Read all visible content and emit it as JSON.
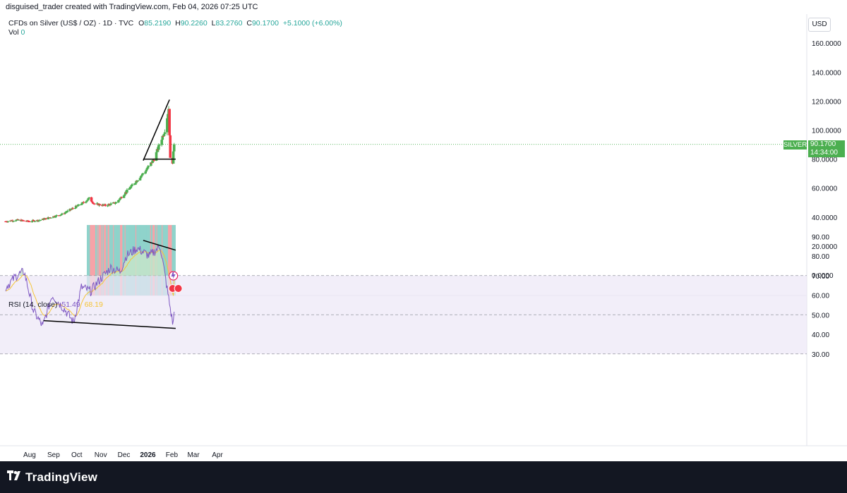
{
  "header": {
    "caption": "disguised_trader created with TradingView.com, Feb 04, 2026 07:25 UTC"
  },
  "legend": {
    "symbol": "CFDs on Silver (US$ / OZ) · 1D · TVC",
    "o_label": "O",
    "o_value": "85.2190",
    "h_label": "H",
    "h_value": "90.2260",
    "l_label": "L",
    "l_value": "83.2760",
    "c_label": "C",
    "c_value": "90.1700",
    "change": "+5.1000 (+6.00%)",
    "vol_label": "Vol",
    "vol_value": "0"
  },
  "currency": "USD",
  "price_tag": {
    "name": "SILVER",
    "price": "90.1700",
    "countdown": "14:34:00"
  },
  "rsi_legend": {
    "label": "RSI (14, close)",
    "rsi_value": "51.49",
    "ma_value": "68.19"
  },
  "branding": {
    "name": "TradingView"
  },
  "colors": {
    "up": "#4caf50",
    "down": "#f23645",
    "vol_up": "#8fd3cb",
    "vol_down": "#f6a3a8",
    "rsi_line": "#7e57c2",
    "rsi_ma": "#f5c437",
    "band": "#ede7f6",
    "trendline": "#000000"
  },
  "chart_data": [
    {
      "type": "candlestick",
      "title": "CFDs on Silver (US$ / OZ) · 1D · TVC",
      "x_tick_labels": [
        "Aug",
        "Sep",
        "Oct",
        "Nov",
        "Dec",
        "2026",
        "Feb",
        "Mar",
        "Apr"
      ],
      "y_tick_labels": [
        "0.0000",
        "20.0000",
        "40.0000",
        "60.0000",
        "80.0000",
        "100.0000",
        "120.0000",
        "140.0000",
        "160.0000"
      ],
      "ylim": [
        -10,
        170
      ],
      "last_price": 90.17,
      "trendlines": [
        {
          "from": [
            "Dec 26",
            79
          ],
          "to": [
            "Jan 29",
            121
          ]
        },
        {
          "from": [
            "Dec 26",
            80
          ],
          "to": [
            "Feb 06",
            80
          ]
        }
      ],
      "close_series": {
        "dates": [
          "Jul 01",
          "Jul 15",
          "Jul 31",
          "Aug 15",
          "Aug 29",
          "Sep 12",
          "Sep 26",
          "Oct 10",
          "Oct 17",
          "Oct 24",
          "Nov 07",
          "Nov 21",
          "Dec 05",
          "Dec 19",
          "Dec 29",
          "Jan 09",
          "Jan 16",
          "Jan 23",
          "Jan 28",
          "Jan 30",
          "Feb 02",
          "Feb 04"
        ],
        "values": [
          37,
          38,
          37,
          38,
          40,
          42,
          46,
          50,
          53,
          49,
          48,
          50,
          58,
          66,
          72,
          80,
          90,
          100,
          115,
          80,
          78,
          90.17
        ]
      }
    },
    {
      "type": "line",
      "title": "RSI (14, close)",
      "y_tick_labels": [
        "30.00",
        "40.00",
        "50.00",
        "60.00",
        "70.00",
        "80.00",
        "90.00"
      ],
      "ylim": [
        25,
        95
      ],
      "bands": [
        30,
        50,
        70
      ],
      "last_rsi": 51.49,
      "last_ma": 68.19,
      "trendlines": [
        {
          "from": [
            "Aug 19",
            47
          ],
          "to": [
            "Feb 06",
            43
          ]
        },
        {
          "from": [
            "Dec 26",
            88
          ],
          "to": [
            "Feb 06",
            83
          ]
        }
      ]
    }
  ]
}
